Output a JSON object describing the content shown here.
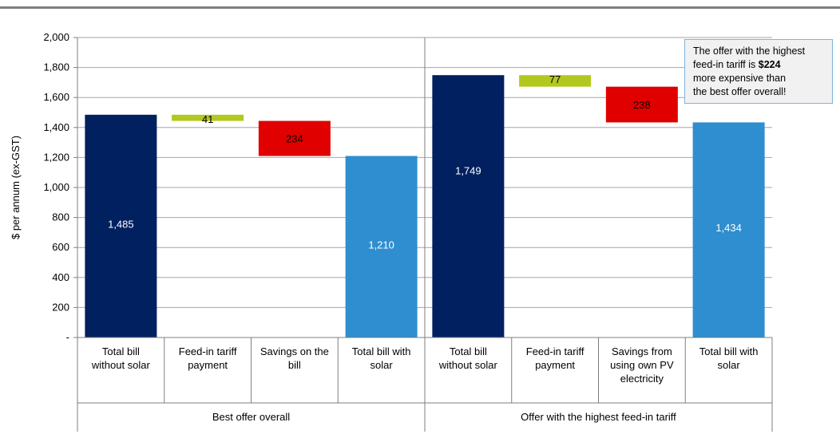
{
  "chart_data": {
    "type": "bar",
    "subtype": "waterfall",
    "ylabel": "$ per annum  (ex-GST)",
    "ylim": [
      0,
      2000
    ],
    "yticks": [
      0,
      200,
      400,
      600,
      800,
      1000,
      1200,
      1400,
      1600,
      1800,
      2000
    ],
    "ytick_labels": [
      "-",
      "200",
      "400",
      "600",
      "800",
      "1,000",
      "1,200",
      "1,400",
      "1,600",
      "1,800",
      "2,000"
    ],
    "grid": true,
    "groups": [
      {
        "name": "Best offer overall",
        "categories": [
          {
            "label": [
              "Total bill",
              "without solar"
            ],
            "start": 0,
            "end": 1485,
            "value_label": "1,485",
            "kind": "total"
          },
          {
            "label": [
              "Feed-in tariff",
              "payment"
            ],
            "start": 1444,
            "end": 1485,
            "value_label": "41",
            "kind": "fit"
          },
          {
            "label": [
              "Savings on the",
              "bill"
            ],
            "start": 1210,
            "end": 1444,
            "value_label": "234",
            "kind": "savings"
          },
          {
            "label": [
              "Total bill with",
              "solar"
            ],
            "start": 0,
            "end": 1210,
            "value_label": "1,210",
            "kind": "final"
          }
        ]
      },
      {
        "name": "Offer with the highest feed-in tariff",
        "categories": [
          {
            "label": [
              "Total bill",
              "without solar"
            ],
            "start": 0,
            "end": 1749,
            "value_label": "1,749",
            "kind": "total"
          },
          {
            "label": [
              "Feed-in tariff",
              "payment"
            ],
            "start": 1672,
            "end": 1749,
            "value_label": "77",
            "kind": "fit"
          },
          {
            "label": [
              "Savings from",
              "using own PV",
              "electricity"
            ],
            "start": 1434,
            "end": 1672,
            "value_label": "238",
            "kind": "savings"
          },
          {
            "label": [
              "Total bill with",
              "solar"
            ],
            "start": 0,
            "end": 1434,
            "value_label": "1,434",
            "kind": "final"
          }
        ]
      }
    ],
    "colors": {
      "total": "#002060",
      "fit": "#b2c81e",
      "savings": "#e00000",
      "final": "#2e8ecf",
      "grid": "#a6a6a6"
    },
    "annotation": {
      "line1": "The offer with the highest",
      "line2_pre": "feed-in tariff is ",
      "line2_bold": "$224",
      "line3": "more expensive than",
      "line4": "the best offer overall!"
    }
  }
}
